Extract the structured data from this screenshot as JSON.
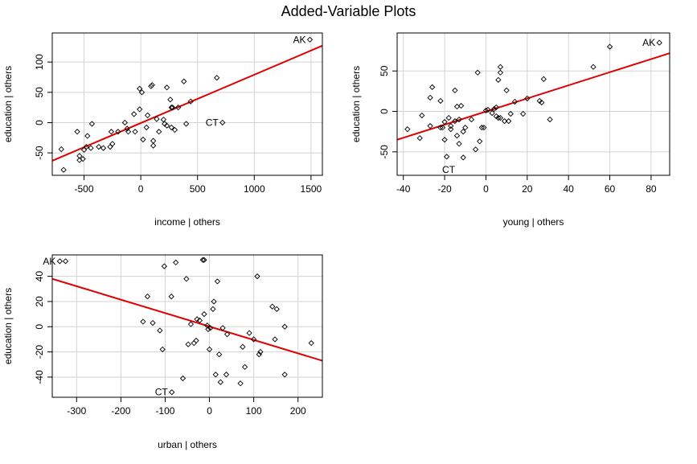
{
  "page": {
    "title": "Added-Variable Plots"
  },
  "chart_data": [
    {
      "type": "scatter",
      "xlabel": "income | others",
      "ylabel": "education  | others",
      "xlim": [
        -780,
        1600
      ],
      "ylim": [
        -87,
        148
      ],
      "xticks": [
        -500,
        0,
        500,
        1000,
        1500
      ],
      "yticks": [
        -50,
        0,
        50,
        100
      ],
      "grid": true,
      "point_labels": [
        {
          "label": "AK",
          "x": 1490,
          "y": 137
        },
        {
          "label": "CT",
          "x": 720,
          "y": 0
        }
      ],
      "points": [
        [
          -700,
          -44
        ],
        [
          -680,
          -78
        ],
        [
          -560,
          -15
        ],
        [
          -540,
          -55
        ],
        [
          -540,
          -62
        ],
        [
          -510,
          -60
        ],
        [
          -500,
          -45
        ],
        [
          -480,
          -40
        ],
        [
          -470,
          -22
        ],
        [
          -440,
          -42
        ],
        [
          -430,
          -2
        ],
        [
          -370,
          -40
        ],
        [
          -330,
          -42
        ],
        [
          -270,
          -40
        ],
        [
          -250,
          -35
        ],
        [
          -260,
          -15
        ],
        [
          -200,
          -15
        ],
        [
          -140,
          0
        ],
        [
          -120,
          -10
        ],
        [
          -110,
          -15
        ],
        [
          -60,
          14
        ],
        [
          -50,
          -15
        ],
        [
          -10,
          22
        ],
        [
          -10,
          56
        ],
        [
          10,
          50
        ],
        [
          20,
          -28
        ],
        [
          50,
          -8
        ],
        [
          60,
          12
        ],
        [
          90,
          60
        ],
        [
          100,
          62
        ],
        [
          110,
          -30
        ],
        [
          110,
          -38
        ],
        [
          140,
          6
        ],
        [
          160,
          -15
        ],
        [
          200,
          5
        ],
        [
          210,
          -2
        ],
        [
          230,
          -5
        ],
        [
          230,
          58
        ],
        [
          260,
          38
        ],
        [
          270,
          -8
        ],
        [
          270,
          25
        ],
        [
          280,
          25
        ],
        [
          300,
          -12
        ],
        [
          330,
          25
        ],
        [
          380,
          68
        ],
        [
          400,
          -2
        ],
        [
          440,
          35
        ],
        [
          670,
          74
        ],
        [
          1490,
          137
        ],
        [
          720,
          0
        ]
      ],
      "fit_line": {
        "x": [
          -780,
          1600
        ],
        "y": [
          -63,
          127
        ]
      }
    },
    {
      "type": "scatter",
      "xlabel": "young | others",
      "ylabel": "education  | others",
      "xlim": [
        -43,
        89
      ],
      "ylim": [
        -79,
        97
      ],
      "xticks": [
        -40,
        -20,
        0,
        20,
        40,
        60,
        80
      ],
      "yticks": [
        -50,
        0,
        50
      ],
      "grid": true,
      "point_labels": [
        {
          "label": "AK",
          "x": 84,
          "y": 85
        },
        {
          "label": "CT",
          "x": -13,
          "y": -72
        }
      ],
      "points": [
        [
          -38,
          -22
        ],
        [
          -32,
          -33
        ],
        [
          -31,
          -5
        ],
        [
          -27,
          -18
        ],
        [
          -27,
          17
        ],
        [
          -26,
          30
        ],
        [
          -22,
          -20
        ],
        [
          -22,
          13
        ],
        [
          -21,
          -20
        ],
        [
          -20,
          -13
        ],
        [
          -20,
          -35
        ],
        [
          -19,
          -56
        ],
        [
          -18,
          -8
        ],
        [
          -17,
          -18
        ],
        [
          -17,
          -22
        ],
        [
          -15,
          -12
        ],
        [
          -15,
          26
        ],
        [
          -14,
          6
        ],
        [
          -14,
          -30
        ],
        [
          -13,
          -40
        ],
        [
          -13,
          -10
        ],
        [
          -12,
          7
        ],
        [
          -11,
          -25
        ],
        [
          -11,
          -57
        ],
        [
          -10,
          -20
        ],
        [
          -7,
          -10
        ],
        [
          -5,
          -47
        ],
        [
          -4,
          48
        ],
        [
          -3,
          -37
        ],
        [
          -2,
          -20
        ],
        [
          -1,
          -20
        ],
        [
          0,
          1
        ],
        [
          1,
          2
        ],
        [
          3,
          -2
        ],
        [
          4,
          3
        ],
        [
          5,
          5
        ],
        [
          5,
          -6
        ],
        [
          6,
          -8
        ],
        [
          6,
          39
        ],
        [
          7,
          -8
        ],
        [
          7,
          55
        ],
        [
          7,
          48
        ],
        [
          9,
          -12
        ],
        [
          10,
          26
        ],
        [
          11,
          -12
        ],
        [
          12,
          -3
        ],
        [
          14,
          12
        ],
        [
          18,
          -3
        ],
        [
          20,
          16
        ],
        [
          26,
          13
        ],
        [
          27,
          11
        ],
        [
          28,
          40
        ],
        [
          31,
          -10
        ],
        [
          52,
          55
        ],
        [
          60,
          80
        ],
        [
          84,
          85
        ]
      ],
      "fit_line": {
        "x": [
          -43,
          89
        ],
        "y": [
          -35,
          72
        ]
      }
    },
    {
      "type": "scatter",
      "xlabel": "urban | others",
      "ylabel": "education  | others",
      "xlim": [
        -355,
        255
      ],
      "ylim": [
        -56,
        57
      ],
      "xticks": [
        -300,
        -200,
        -100,
        0,
        100,
        200
      ],
      "yticks": [
        -40,
        -20,
        0,
        20,
        40
      ],
      "grid": true,
      "point_labels": [
        {
          "label": "AK",
          "x": -338,
          "y": 52
        },
        {
          "label": "CT",
          "x": -85,
          "y": -52
        }
      ],
      "points": [
        [
          -338,
          52
        ],
        [
          -325,
          52
        ],
        [
          -150,
          4
        ],
        [
          -140,
          24
        ],
        [
          -128,
          3
        ],
        [
          -112,
          -3
        ],
        [
          -106,
          -18
        ],
        [
          -102,
          48
        ],
        [
          -86,
          24
        ],
        [
          -76,
          51
        ],
        [
          -60,
          -41
        ],
        [
          -52,
          38
        ],
        [
          -48,
          -14
        ],
        [
          -42,
          2
        ],
        [
          -35,
          -13
        ],
        [
          -30,
          -11
        ],
        [
          -28,
          6
        ],
        [
          -22,
          5
        ],
        [
          -15,
          53
        ],
        [
          -12,
          53
        ],
        [
          -12,
          10
        ],
        [
          -5,
          1
        ],
        [
          -3,
          -2
        ],
        [
          0,
          -18
        ],
        [
          2,
          -1
        ],
        [
          8,
          14
        ],
        [
          10,
          20
        ],
        [
          14,
          -38
        ],
        [
          18,
          36
        ],
        [
          22,
          -22
        ],
        [
          25,
          -44
        ],
        [
          30,
          -1
        ],
        [
          38,
          -38
        ],
        [
          40,
          -6
        ],
        [
          70,
          -45
        ],
        [
          75,
          -16
        ],
        [
          80,
          -32
        ],
        [
          90,
          -5
        ],
        [
          100,
          -10
        ],
        [
          108,
          40
        ],
        [
          112,
          -22
        ],
        [
          115,
          -20
        ],
        [
          142,
          16
        ],
        [
          148,
          -10
        ],
        [
          152,
          14
        ],
        [
          170,
          0
        ],
        [
          170,
          -38
        ],
        [
          230,
          -13
        ],
        [
          -85,
          -52
        ]
      ],
      "fit_line": {
        "x": [
          -355,
          255
        ],
        "y": [
          38,
          -27
        ]
      }
    }
  ]
}
